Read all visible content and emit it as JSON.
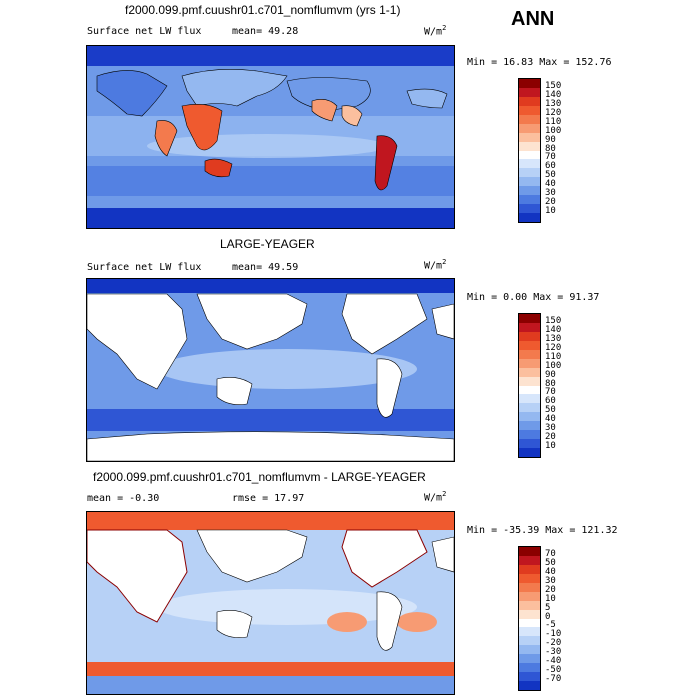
{
  "season": "ANN",
  "panels": [
    {
      "title": "f2000.099.pmf.cuushr01.c701_nomflumvm (yrs 1-1)",
      "left_label": "Surface net LW flux",
      "mean_text": "mean=  49.28",
      "units": "W/m",
      "units_sup": "2",
      "minmax": "Min =  16.83 Max = 152.76",
      "colorbar_labels": [
        "150",
        "140",
        "130",
        "120",
        "110",
        "100",
        "90",
        "80",
        "70",
        "60",
        "50",
        "40",
        "30",
        "20",
        "10"
      ],
      "colorbar_colors": [
        "#8b0000",
        "#c0161f",
        "#e03b1f",
        "#ef5a2f",
        "#f37a4d",
        "#f79b73",
        "#fbbf9e",
        "#fde3d0",
        "#ffffff",
        "#d7e6fb",
        "#b7d1f6",
        "#94b8f0",
        "#6f9ae8",
        "#4d7ae0",
        "#2f56d4",
        "#1234c2"
      ]
    },
    {
      "title": "LARGE-YEAGER",
      "left_label": "Surface net LW flux",
      "mean_text": "mean=  49.59",
      "units": "W/m",
      "units_sup": "2",
      "minmax": "Min =   0.00 Max =  91.37",
      "colorbar_labels": [
        "150",
        "140",
        "130",
        "120",
        "110",
        "100",
        "90",
        "80",
        "70",
        "60",
        "50",
        "40",
        "30",
        "20",
        "10"
      ],
      "colorbar_colors": [
        "#8b0000",
        "#c0161f",
        "#e03b1f",
        "#ef5a2f",
        "#f37a4d",
        "#f79b73",
        "#fbbf9e",
        "#fde3d0",
        "#ffffff",
        "#d7e6fb",
        "#b7d1f6",
        "#94b8f0",
        "#6f9ae8",
        "#4d7ae0",
        "#2f56d4",
        "#1234c2"
      ]
    },
    {
      "title": "f2000.099.pmf.cuushr01.c701_nomflumvm - LARGE-YEAGER",
      "left_label": "mean =  -0.30",
      "mean_text": "rmse =  17.97",
      "units": "W/m",
      "units_sup": "2",
      "minmax": "Min = -35.39 Max = 121.32",
      "colorbar_labels": [
        "70",
        "50",
        "40",
        "30",
        "20",
        "10",
        "5",
        "0",
        "-5",
        "-10",
        "-20",
        "-30",
        "-40",
        "-50",
        "-70"
      ],
      "colorbar_colors": [
        "#8b0000",
        "#c0161f",
        "#e03b1f",
        "#ef5a2f",
        "#f37a4d",
        "#f79b73",
        "#fbbf9e",
        "#fde3d0",
        "#ffffff",
        "#d7e6fb",
        "#b7d1f6",
        "#94b8f0",
        "#6f9ae8",
        "#4d7ae0",
        "#2f56d4",
        "#1234c2"
      ]
    }
  ]
}
